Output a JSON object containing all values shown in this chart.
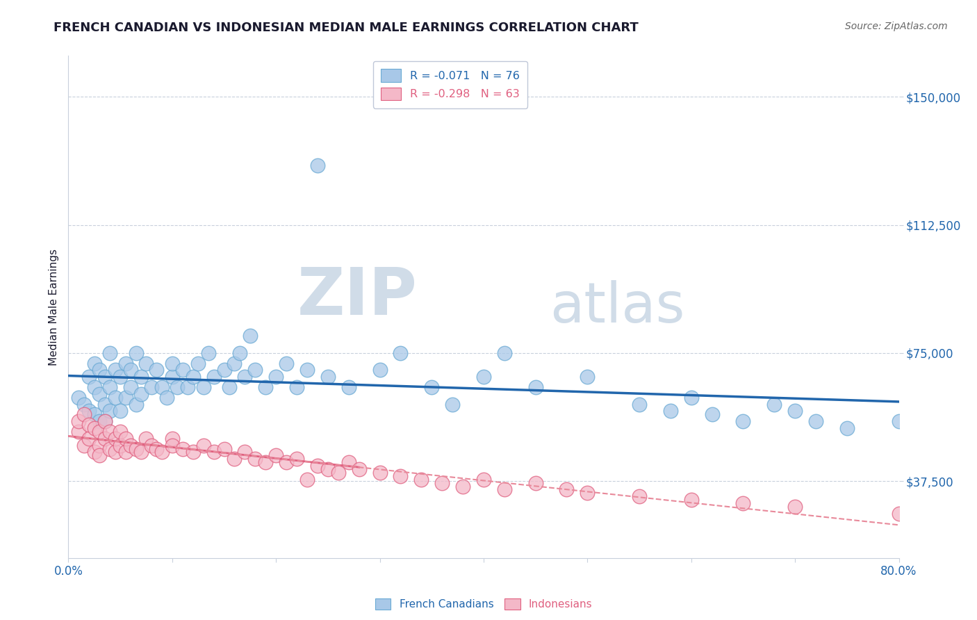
{
  "title": "FRENCH CANADIAN VS INDONESIAN MEDIAN MALE EARNINGS CORRELATION CHART",
  "source": "Source: ZipAtlas.com",
  "ylabel": "Median Male Earnings",
  "xlim": [
    0.0,
    0.8
  ],
  "ylim": [
    15000,
    162000
  ],
  "ytick_positions": [
    37500,
    75000,
    112500,
    150000
  ],
  "ytick_labels": [
    "$37,500",
    "$75,000",
    "$112,500",
    "$150,000"
  ],
  "xtick_positions": [
    0.0,
    0.1,
    0.2,
    0.3,
    0.4,
    0.5,
    0.6,
    0.7,
    0.8
  ],
  "xtick_labels": [
    "0.0%",
    "",
    "",
    "",
    "",
    "",
    "",
    "",
    "80.0%"
  ],
  "fc_color": "#a8c8e8",
  "fc_edge_color": "#6aaad4",
  "ind_color": "#f4b8c8",
  "ind_edge_color": "#e06080",
  "fc_line_color": "#2166ac",
  "ind_line_color": "#e8899a",
  "ind_line_solid_color": "#e06080",
  "fc_R": -0.071,
  "fc_N": 76,
  "ind_R": -0.298,
  "ind_N": 63,
  "watermark_zip": "ZIP",
  "watermark_atlas": "atlas",
  "watermark_color": "#d0dce8",
  "background_color": "#ffffff",
  "grid_color": "#c8d0dc",
  "title_color": "#1a1a2e",
  "axis_label_color": "#1a1a2e",
  "tick_label_color": "#2166ac",
  "french_canadians_x": [
    0.01,
    0.015,
    0.02,
    0.02,
    0.025,
    0.025,
    0.025,
    0.03,
    0.03,
    0.03,
    0.035,
    0.035,
    0.035,
    0.04,
    0.04,
    0.04,
    0.045,
    0.045,
    0.05,
    0.05,
    0.055,
    0.055,
    0.06,
    0.06,
    0.065,
    0.065,
    0.07,
    0.07,
    0.075,
    0.08,
    0.085,
    0.09,
    0.095,
    0.1,
    0.1,
    0.105,
    0.11,
    0.115,
    0.12,
    0.125,
    0.13,
    0.135,
    0.14,
    0.15,
    0.155,
    0.16,
    0.165,
    0.17,
    0.175,
    0.18,
    0.19,
    0.2,
    0.21,
    0.22,
    0.23,
    0.24,
    0.25,
    0.27,
    0.3,
    0.32,
    0.35,
    0.37,
    0.4,
    0.42,
    0.45,
    0.5,
    0.55,
    0.58,
    0.6,
    0.62,
    0.65,
    0.68,
    0.7,
    0.72,
    0.75,
    0.8
  ],
  "french_canadians_y": [
    62000,
    60000,
    68000,
    58000,
    65000,
    72000,
    57000,
    70000,
    63000,
    55000,
    68000,
    60000,
    55000,
    75000,
    65000,
    58000,
    70000,
    62000,
    68000,
    58000,
    72000,
    62000,
    65000,
    70000,
    75000,
    60000,
    68000,
    63000,
    72000,
    65000,
    70000,
    65000,
    62000,
    68000,
    72000,
    65000,
    70000,
    65000,
    68000,
    72000,
    65000,
    75000,
    68000,
    70000,
    65000,
    72000,
    75000,
    68000,
    80000,
    70000,
    65000,
    68000,
    72000,
    65000,
    70000,
    130000,
    68000,
    65000,
    70000,
    75000,
    65000,
    60000,
    68000,
    75000,
    65000,
    68000,
    60000,
    58000,
    62000,
    57000,
    55000,
    60000,
    58000,
    55000,
    53000,
    55000
  ],
  "indonesians_x": [
    0.01,
    0.01,
    0.015,
    0.015,
    0.02,
    0.02,
    0.025,
    0.025,
    0.03,
    0.03,
    0.03,
    0.035,
    0.035,
    0.04,
    0.04,
    0.045,
    0.045,
    0.05,
    0.05,
    0.055,
    0.055,
    0.06,
    0.065,
    0.07,
    0.075,
    0.08,
    0.085,
    0.09,
    0.1,
    0.1,
    0.11,
    0.12,
    0.13,
    0.14,
    0.15,
    0.16,
    0.17,
    0.18,
    0.19,
    0.2,
    0.21,
    0.22,
    0.23,
    0.24,
    0.25,
    0.26,
    0.27,
    0.28,
    0.3,
    0.32,
    0.34,
    0.36,
    0.38,
    0.4,
    0.42,
    0.45,
    0.48,
    0.5,
    0.55,
    0.6,
    0.65,
    0.7,
    0.8
  ],
  "indonesians_y": [
    52000,
    55000,
    48000,
    57000,
    50000,
    54000,
    46000,
    53000,
    48000,
    52000,
    45000,
    50000,
    55000,
    47000,
    52000,
    46000,
    50000,
    48000,
    52000,
    46000,
    50000,
    48000,
    47000,
    46000,
    50000,
    48000,
    47000,
    46000,
    50000,
    48000,
    47000,
    46000,
    48000,
    46000,
    47000,
    44000,
    46000,
    44000,
    43000,
    45000,
    43000,
    44000,
    38000,
    42000,
    41000,
    40000,
    43000,
    41000,
    40000,
    39000,
    38000,
    37000,
    36000,
    38000,
    35000,
    37000,
    35000,
    34000,
    33000,
    32000,
    31000,
    30000,
    28000
  ]
}
